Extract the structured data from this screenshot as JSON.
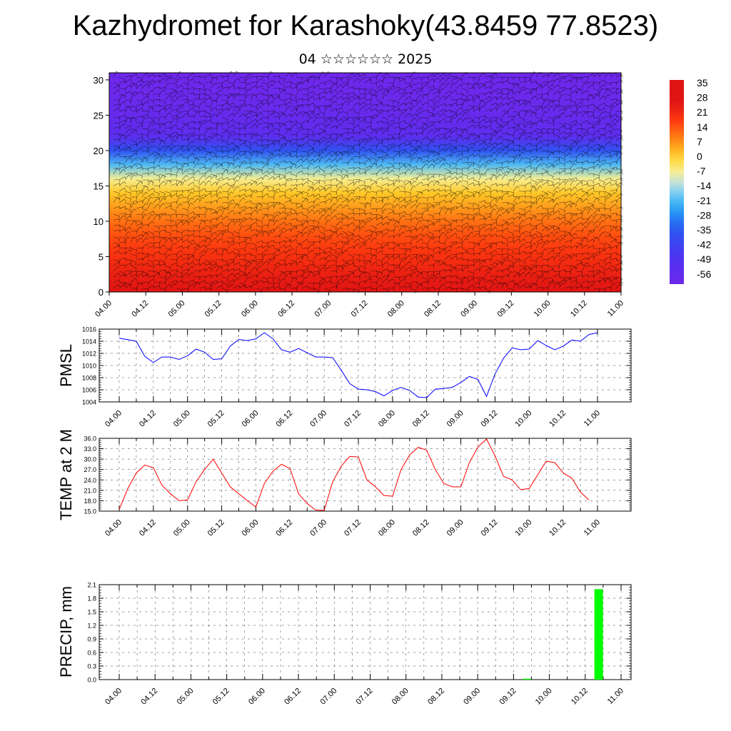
{
  "header": {
    "title": "Kazhydromet for Karashoky(43.8459 77.8523)",
    "subtitle": "04 ☆☆☆☆☆☆ 2025"
  },
  "colors": {
    "pmsl_line": "#0000ff",
    "temp_line": "#ff0000",
    "precip_bar": "#00ff00",
    "grid": "#000000"
  },
  "chart_data": [
    {
      "type": "heatmap",
      "name": "temperature-cross-section",
      "x_tick_labels": [
        "04.00",
        "04.12",
        "05.00",
        "05.12",
        "06.00",
        "06.12",
        "07.00",
        "07.12",
        "08.00",
        "08.12",
        "09.00",
        "09.12",
        "10.00",
        "10.12",
        "11.00"
      ],
      "y_ticks": [
        0,
        5,
        10,
        15,
        20,
        25,
        30
      ],
      "ylim": [
        0,
        31
      ],
      "colorbar_labels": [
        "35",
        "28",
        "21",
        "14",
        "7",
        "0",
        "-7",
        "-14",
        "-21",
        "-28",
        "-35",
        "-42",
        "-49",
        "-56"
      ],
      "temperature_profile_by_height": {
        "height": [
          0,
          2,
          4,
          6,
          8,
          10,
          12,
          14,
          16,
          18,
          20,
          22,
          24,
          26,
          28,
          31
        ],
        "temp": [
          25,
          23,
          20,
          17,
          14,
          10,
          5,
          0,
          -8,
          -22,
          -38,
          -55,
          -58,
          -60,
          -61,
          -62
        ]
      },
      "overlay": "wind barbs"
    },
    {
      "type": "line",
      "name": "PMSL",
      "ylabel": "PMSL",
      "ylim": [
        1004,
        1016
      ],
      "y_ticks": [
        1004,
        1006,
        1008,
        1010,
        1012,
        1014,
        1016
      ],
      "x_tick_labels": [
        "04.00",
        "04.12",
        "05.00",
        "05.12",
        "06.00",
        "06.12",
        "07.00",
        "07.12",
        "08.00",
        "08.12",
        "09.00",
        "09.12",
        "10.00",
        "10.12",
        "11.00"
      ],
      "x_range": [
        0,
        56
      ],
      "x": [
        0,
        2,
        3,
        4,
        5,
        6,
        7,
        8,
        9,
        10,
        11,
        12,
        13,
        14,
        15,
        16,
        17,
        18,
        19,
        20,
        21,
        22,
        23,
        24,
        25,
        26,
        27,
        28,
        29,
        30,
        31,
        32,
        33,
        34,
        35,
        36,
        37,
        38,
        39,
        40,
        41,
        42,
        43,
        44,
        45,
        46,
        47,
        48,
        49,
        50,
        51,
        52,
        53,
        54,
        55,
        56
      ],
      "values": [
        1014.5,
        1014,
        1011.5,
        1010.5,
        1011.4,
        1011.4,
        1011,
        1011.6,
        1012.7,
        1012.2,
        1011,
        1011.1,
        1013.2,
        1014.3,
        1014.1,
        1014.4,
        1015.4,
        1014.4,
        1012.6,
        1012.2,
        1012.8,
        1012.1,
        1011.4,
        1011.4,
        1011.3,
        1009.2,
        1007,
        1006.1,
        1006,
        1005.7,
        1005,
        1005.9,
        1006.4,
        1005.9,
        1004.8,
        1004.7,
        1006.1,
        1006.2,
        1006.4,
        1007.2,
        1008.2,
        1007.7,
        1004.9,
        1008.6,
        1011.2,
        1012.9,
        1012.6,
        1012.7,
        1014.1,
        1013.3,
        1012.6,
        1013.2,
        1014.2,
        1014,
        1015.1,
        1015.4
      ]
    },
    {
      "type": "line",
      "name": "TEMP at 2 M",
      "ylabel": "TEMP at 2 M",
      "ylim": [
        15,
        36
      ],
      "y_tick_labels": [
        "15.0",
        "18.0",
        "21.0",
        "24.0",
        "27.0",
        "30.0",
        "33.0",
        "36.0"
      ],
      "x_tick_labels": [
        "04.00",
        "04.12",
        "05.00",
        "05.12",
        "06.00",
        "06.12",
        "07.00",
        "07.12",
        "08.00",
        "08.12",
        "09.00",
        "09.12",
        "10.00",
        "10.12",
        "11.00"
      ],
      "x_range": [
        0,
        56
      ],
      "x": [
        0,
        1,
        2,
        3,
        4,
        5,
        6,
        7,
        8,
        9,
        10,
        11,
        12,
        13,
        14,
        15,
        16,
        17,
        18,
        19,
        20,
        21,
        22,
        23,
        24,
        25,
        26,
        27,
        28,
        29,
        30,
        31,
        32,
        33,
        34,
        35,
        36,
        37,
        38,
        39,
        40,
        41,
        42,
        43,
        44,
        45,
        46,
        47,
        48,
        49,
        50,
        51,
        52,
        53,
        54,
        55
      ],
      "values": [
        15.5,
        21.5,
        26,
        28.3,
        27.5,
        22.5,
        20,
        18,
        18.2,
        23.5,
        27,
        30,
        26,
        22,
        20,
        18,
        16.2,
        23,
        26.5,
        28.5,
        27.3,
        20,
        17.2,
        15.3,
        15.2,
        23.5,
        28,
        30.8,
        30.6,
        24,
        22,
        19.5,
        19.3,
        27,
        31.2,
        33.4,
        32.6,
        27,
        23,
        22,
        22,
        29,
        33.5,
        35.8,
        31,
        25,
        24,
        21.2,
        21.5,
        25.5,
        29.4,
        29,
        26,
        24.5,
        20.5,
        18.2
      ]
    },
    {
      "type": "bar",
      "name": "PRECIP, mm",
      "ylabel": "PRECIP, mm",
      "ylim": [
        0,
        2.1
      ],
      "y_tick_labels": [
        "0.0",
        "0.3",
        "0.6",
        "0.9",
        "1.2",
        "1.5",
        "1.8",
        "2.1"
      ],
      "x_tick_labels": [
        "04.00",
        "04.12",
        "05.00",
        "05.12",
        "06.00",
        "06.12",
        "07.00",
        "07.12",
        "08.00",
        "08.12",
        "09.00",
        "09.12",
        "10.00",
        "10.12",
        "11.00"
      ],
      "x_range": [
        0,
        56
      ],
      "bars": [
        {
          "x": 45.5,
          "value": 0.02
        },
        {
          "x": 53.5,
          "value": 2.0
        }
      ]
    }
  ]
}
